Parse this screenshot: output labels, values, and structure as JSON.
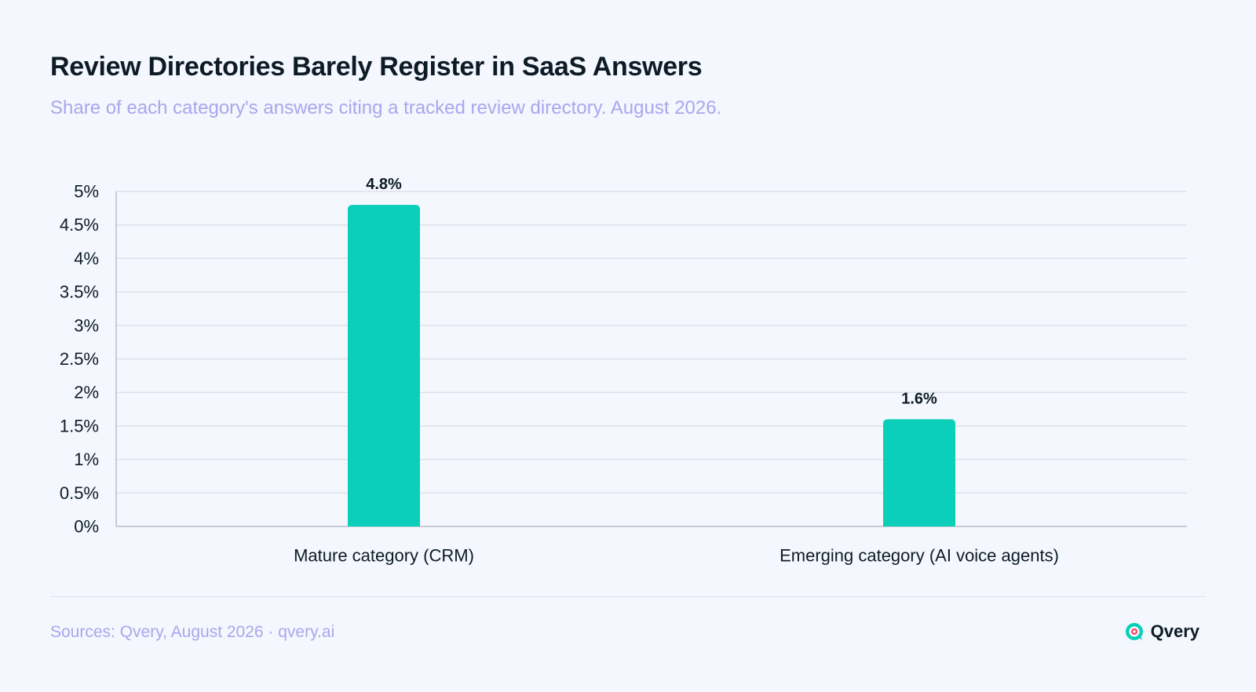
{
  "title": "Review Directories Barely Register in SaaS Answers",
  "subtitle": "Share of each category's answers citing a tracked review directory. August 2026.",
  "footer": {
    "source": "Sources: Qvery, August 2026 · qvery.ai",
    "brand": "Qvery",
    "brand_icon": "qvery-logo-icon"
  },
  "colors": {
    "bar": "#0ccfb9",
    "grid": "#dde1ea",
    "axis": "#b9bec9",
    "text": "#0d1b26",
    "subtitle": "#a9a6ee"
  },
  "chart_data": {
    "type": "bar",
    "categories": [
      "Mature category (CRM)",
      "Emerging category (AI voice agents)"
    ],
    "values": [
      4.8,
      1.6
    ],
    "value_labels": [
      "4.8%",
      "1.6%"
    ],
    "title": "Review Directories Barely Register in SaaS Answers",
    "subtitle": "Share of each category's answers citing a tracked review directory. August 2026.",
    "xlabel": "",
    "ylabel": "",
    "ylim": [
      0,
      5
    ],
    "y_ticks": [
      0,
      0.5,
      1,
      1.5,
      2,
      2.5,
      3,
      3.5,
      4,
      4.5,
      5
    ],
    "y_tick_labels": [
      "0%",
      "0.5%",
      "1%",
      "1.5%",
      "2%",
      "2.5%",
      "3%",
      "3.5%",
      "4%",
      "4.5%",
      "5%"
    ],
    "grid": true,
    "legend": "none"
  }
}
